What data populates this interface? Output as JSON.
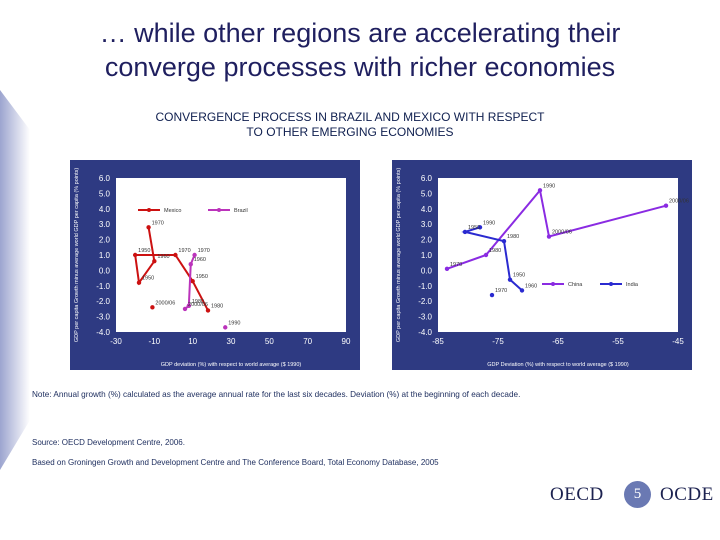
{
  "slide": {
    "title_line1": "… while other regions are accelerating their",
    "title_line2": "converge processes with richer economies",
    "chart_title_line1": "CONVERGENCE PROCESS IN BRAZIL AND MEXICO WITH RESPECT",
    "chart_title_line2": "TO OTHER EMERGING ECONOMIES",
    "note": "Note: Annual growth (%) calculated  as the average annual rate for the last six decades. Deviation (%) at the beginning of each decade.",
    "source1": "Source: OECD Development Centre, 2006.",
    "source2": "Based on Groningen Growth and Development Centre and The Conference Board, Total Economy Database, 2005",
    "page_number": "5",
    "logo_left": "OECD",
    "logo_right": "OCDE"
  },
  "colors": {
    "title": "#1f1f5f",
    "mexico": "#cc1111",
    "brazil": "#bb33bb",
    "china": "#8a2be2",
    "india": "#2a2ad0",
    "axis_text": "#ffffff",
    "panel_bg": "#2e3a82"
  },
  "chart_data": [
    {
      "type": "line",
      "name": "left",
      "ylabel": "GDP per capita Growth minus average world GDP per capita (% points)",
      "xlabel": "GDP deviation (%) with respect to world average ($ 1990)",
      "xlim": [
        -30,
        90
      ],
      "ylim": [
        -4,
        6
      ],
      "xticks": [
        "-30",
        "-10",
        "10",
        "30",
        "50",
        "70",
        "90"
      ],
      "yticks": [
        "-4.0",
        "-3.0",
        "-2.0",
        "-1.0",
        "0.0",
        "1.0",
        "2.0",
        "3.0",
        "4.0",
        "5.0",
        "6.0"
      ],
      "legend": [
        "Mexico",
        "Brazil"
      ],
      "series": [
        {
          "name": "Mexico",
          "x": [
            -13,
            -10,
            -18,
            -20,
            1,
            10,
            18
          ],
          "y": [
            2.8,
            0.6,
            -0.8,
            1.0,
            1.0,
            -0.7,
            -2.6
          ],
          "labels": [
            "1970",
            "1960",
            "1950",
            "1950",
            "1970",
            "1950",
            "1980"
          ]
        },
        {
          "name": "Brazil",
          "x": [
            11,
            9,
            8,
            6
          ],
          "y": [
            1.0,
            0.4,
            -2.3,
            -2.5
          ],
          "labels": [
            "1970",
            "1960",
            "1980",
            "2000/06"
          ]
        },
        {
          "name": "Mexico-2000",
          "x": [
            -11
          ],
          "y": [
            -2.4
          ],
          "labels": [
            "2000/06"
          ]
        },
        {
          "name": "Brazil-1990",
          "x": [
            27
          ],
          "y": [
            -3.7
          ],
          "labels": [
            "1990"
          ]
        }
      ]
    },
    {
      "type": "line",
      "name": "right",
      "ylabel": "GDP per capita Growth minus average world GDP per capita (% points)",
      "xlabel": "GDP Deviation (%) with respect to world average ($ 1990)",
      "xlim": [
        -85,
        -45
      ],
      "ylim": [
        -4,
        6
      ],
      "xticks": [
        "-85",
        "-75",
        "-65",
        "-55",
        "-45"
      ],
      "yticks": [
        "-4.0",
        "-3.0",
        "-2.0",
        "-1.0",
        "0.0",
        "1.0",
        "2.0",
        "3.0",
        "4.0",
        "5.0",
        "6.0"
      ],
      "legend": [
        "China",
        "India"
      ],
      "series": [
        {
          "name": "China",
          "x": [
            -83.5,
            -77,
            -68,
            -66.5,
            -47
          ],
          "y": [
            0.1,
            1.0,
            5.2,
            2.2,
            4.2
          ],
          "labels": [
            "1970",
            "1980",
            "1990",
            "2000/06",
            "2000/06"
          ]
        },
        {
          "name": "India",
          "x": [
            -78,
            -80.5,
            -74,
            -73,
            -71
          ],
          "y": [
            2.8,
            2.5,
            1.9,
            -0.6,
            -1.3
          ],
          "labels": [
            "1990",
            "1950",
            "1980",
            "1950",
            "1960"
          ]
        },
        {
          "name": "India-1970",
          "x": [
            -76
          ],
          "y": [
            -1.6
          ],
          "labels": [
            "1970"
          ]
        }
      ]
    }
  ]
}
